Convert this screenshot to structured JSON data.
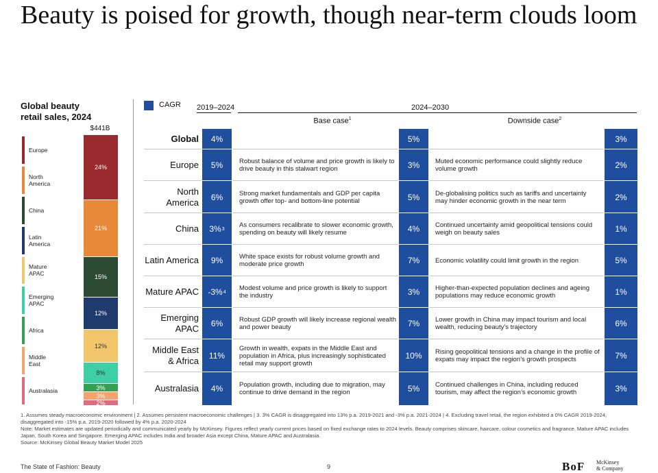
{
  "title": "Beauty is poised for growth, though near-term clouds loom",
  "left_panel": {
    "heading_line1": "Global beauty",
    "heading_line2": "retail sales, 2024",
    "total": "$441B",
    "regions": [
      {
        "name_line1": "Europe",
        "name_line2": "",
        "color": "#9b2a2e"
      },
      {
        "name_line1": "North",
        "name_line2": "America",
        "color": "#e8893a"
      },
      {
        "name_line1": "China",
        "name_line2": "",
        "color": "#2d4a33"
      },
      {
        "name_line1": "Latin",
        "name_line2": "America",
        "color": "#1f3a6d"
      },
      {
        "name_line1": "Mature",
        "name_line2": "APAC",
        "color": "#f2c76b"
      },
      {
        "name_line1": "Emerging",
        "name_line2": "APAC",
        "color": "#3fcfa4"
      },
      {
        "name_line1": "Africa",
        "name_line2": "",
        "color": "#35a051"
      },
      {
        "name_line1": "Middle",
        "name_line2": "East",
        "color": "#f4a36c"
      },
      {
        "name_line1": "Australasia",
        "name_line2": "",
        "color": "#e06b80"
      }
    ]
  },
  "chart_data": {
    "type": "bar",
    "title": "Global beauty retail sales, 2024",
    "total_label": "$441B",
    "stacked": true,
    "categories": [
      "Europe",
      "North America",
      "China",
      "Latin America",
      "Mature APAC",
      "Emerging APAC",
      "Africa",
      "Middle East",
      "Australasia"
    ],
    "values_pct": [
      24,
      21,
      15,
      12,
      12,
      8,
      3,
      3,
      2
    ],
    "labels": [
      "24%",
      "21%",
      "15%",
      "12%",
      "12%",
      "8%",
      "3%",
      "3%",
      "2%"
    ],
    "colors": [
      "#9b2a2e",
      "#e8893a",
      "#2d4a33",
      "#1f3a6d",
      "#f2c76b",
      "#3fcfa4",
      "#35a051",
      "#f4a36c",
      "#e06b80"
    ]
  },
  "table": {
    "cagr_label": "CAGR",
    "period1": "2019–2024",
    "period2": "2024–2030",
    "base_case": "Base case",
    "base_case_note": "1",
    "downside_case": "Downside case",
    "downside_case_note": "2",
    "accent": "#1f4e9e",
    "rows": [
      {
        "region": "Global",
        "cagr_hist": "4%",
        "hist_note": "",
        "base_text": "",
        "base_cagr": "5%",
        "down_text": "",
        "down_cagr": "3%"
      },
      {
        "region": "Europe",
        "cagr_hist": "5%",
        "hist_note": "",
        "base_text": "Robust balance of volume and price growth is likely to drive beauty in this stalwart region",
        "base_cagr": "3%",
        "down_text": "Muted economic performance could slightly reduce volume growth",
        "down_cagr": "2%"
      },
      {
        "region": "North America",
        "cagr_hist": "6%",
        "hist_note": "",
        "base_text": "Strong market fundamentals and GDP per capita growth offer top- and bottom-line potential",
        "base_cagr": "5%",
        "down_text": "De-globalising politics such as tariffs and uncertainty may hinder economic growth in the near term",
        "down_cagr": "2%"
      },
      {
        "region": "China",
        "cagr_hist": "3%",
        "hist_note": "3",
        "base_text": "As consumers recalibrate to slower economic growth, spending on beauty will likely resume",
        "base_cagr": "4%",
        "down_text": "Continued uncertainty amid geopolitical tensions could weigh on beauty sales",
        "down_cagr": "1%"
      },
      {
        "region": "Latin America",
        "cagr_hist": "9%",
        "hist_note": "",
        "base_text": "White space exists for robust volume growth and moderate price growth",
        "base_cagr": "7%",
        "down_text": "Economic volatility could limit growth in the region",
        "down_cagr": "5%"
      },
      {
        "region": "Mature APAC",
        "cagr_hist": "-3%",
        "hist_note": "4",
        "base_text": "Modest volume and price growth is likely to support the industry",
        "base_cagr": "3%",
        "down_text": "Higher-than-expected population declines and ageing populations may reduce economic growth",
        "down_cagr": "1%"
      },
      {
        "region": "Emerging APAC",
        "cagr_hist": "6%",
        "hist_note": "",
        "base_text": "Robust GDP growth will likely increase regional wealth and power beauty",
        "base_cagr": "7%",
        "down_text": "Lower growth in China may impact tourism and local wealth, reducing beauty’s trajectory",
        "down_cagr": "6%"
      },
      {
        "region": "Middle East & Africa",
        "cagr_hist": "11%",
        "hist_note": "",
        "base_text": "Growth in wealth, expats in the Middle East and population in Africa, plus increasingly sophisticated retail may support growth",
        "base_cagr": "10%",
        "down_text": "Rising geopolitical tensions and a change in the profile of expats may impact the region’s growth prospects",
        "down_cagr": "7%"
      },
      {
        "region": "Australasia",
        "cagr_hist": "4%",
        "hist_note": "",
        "base_text": "Population growth, including due to migration, may continue to drive demand in the region",
        "base_cagr": "5%",
        "down_text": "Continued challenges in China, including reduced tourism, may affect the region’s economic growth",
        "down_cagr": "3%"
      }
    ]
  },
  "footnotes": "1. Assumes steady macroeconomic environment | 2. Assumes persistent macroeconomic challenges | 3. 3% CAGR is disaggregated into 13% p.a. 2019-2021 and -3% p.a. 2021-2024 | 4. Excluding travel retail, the region exhibited a 0% CAGR 2019-2024, disaggregated into -15% p.a. 2019-2020 followed by 4% p.a. 2020-2024",
  "note": "Note: Market estimates are updated periodically and communicated yearly by McKinsey. Figures reflect yearly current prices based on fixed exchange rates to 2024 levels. Beauty comprises skincare, haircare, colour cosmetics and fragrance. Mature APAC includes Japan, South Korea and Singapore. Emerging APAC includes India and broader Asia except China, Mature APAC and Australasia.",
  "source": "Source: McKinsey Global Beauty Market Model 2025",
  "footer": {
    "publication": "The State of Fashion: Beauty",
    "page": "9",
    "logo1": "BoF",
    "logo2_line1": "McKinsey",
    "logo2_line2": "& Company"
  }
}
